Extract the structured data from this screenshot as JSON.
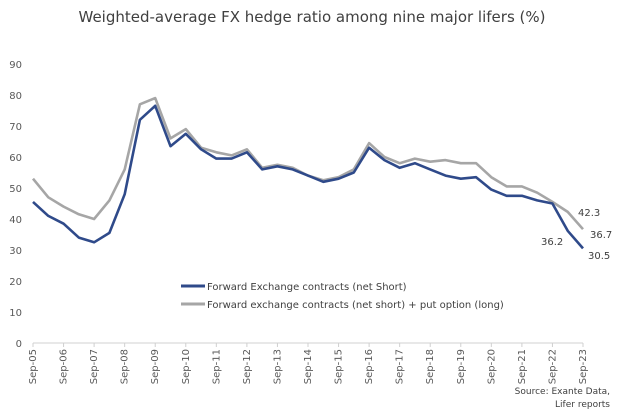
{
  "chart_data": {
    "type": "line",
    "title": "Weighted-average FX hedge ratio among nine major lifers (%)",
    "xlabel": "",
    "ylabel": "",
    "ylim": [
      0,
      90
    ],
    "yticks": [
      0,
      10,
      20,
      30,
      40,
      50,
      60,
      70,
      80,
      90
    ],
    "xtick_labels": [
      "Sep-05",
      "Sep-06",
      "Sep-07",
      "Sep-08",
      "Sep-09",
      "Sep-10",
      "Sep-11",
      "Sep-12",
      "Sep-13",
      "Sep-14",
      "Sep-15",
      "Sep-16",
      "Sep-17",
      "Sep-18",
      "Sep-19",
      "Sep-20",
      "Sep-21",
      "Sep-22",
      "Sep-23"
    ],
    "frequency": "semi-annual (Sep-05 to Sep-23)",
    "grid": false,
    "legend_position": "center-right",
    "series": [
      {
        "name": "Forward Exchange contracts (net Short)",
        "color": "#2F4A8A",
        "values": [
          45.5,
          41,
          38.5,
          34,
          32.5,
          35.5,
          48,
          72,
          76.5,
          63.5,
          67.5,
          62.5,
          59.5,
          59.5,
          61.5,
          56,
          57,
          56,
          54,
          52,
          53,
          55,
          63,
          59,
          56.5,
          58,
          56,
          54,
          53,
          53.5,
          49.5,
          47.5,
          47.5,
          46,
          45,
          36.2,
          30.5
        ]
      },
      {
        "name": "Forward exchange contracts (net short) + put option (long)",
        "color": "#A6A6A6",
        "values": [
          53,
          47,
          44,
          41.5,
          40,
          46,
          56,
          77,
          79,
          66,
          69,
          63,
          61.5,
          60.5,
          62.5,
          56.5,
          57.5,
          56.5,
          54,
          52.5,
          53.5,
          56,
          64.5,
          60,
          58,
          59.5,
          58.5,
          59,
          58,
          58,
          53.5,
          50.5,
          50.5,
          48.5,
          45.5,
          42.3,
          36.7
        ]
      }
    ],
    "annotations": [
      "36.2",
      "30.5",
      "42.3",
      "36.7"
    ]
  },
  "source": {
    "line1": "Source: Exante Data,",
    "line2": "Lifer reports"
  }
}
